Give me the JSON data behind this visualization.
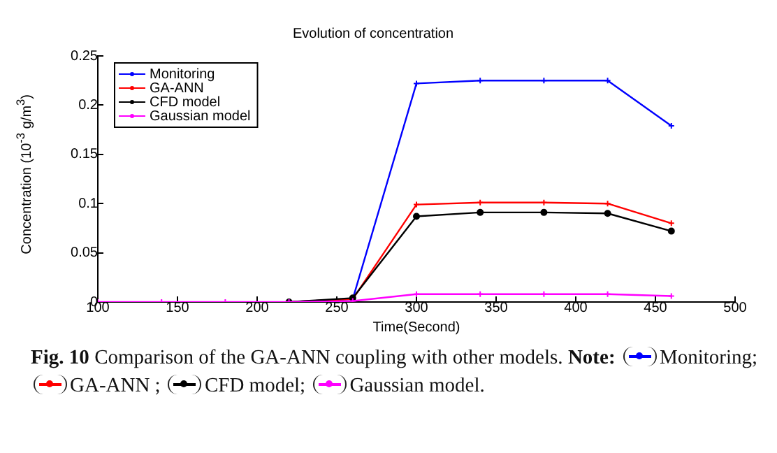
{
  "chart_data": {
    "type": "line",
    "title": "Evolution of concentration",
    "xlabel": "Time(Second)",
    "ylabel": "Concentration (10$^{-3}$ g/m$^{3}$)",
    "x": [
      100,
      140,
      180,
      220,
      260,
      300,
      340,
      380,
      420,
      460
    ],
    "series": [
      {
        "name": "Monitoring",
        "color": "#0000ff",
        "marker": "cross",
        "values": [
          null,
          null,
          null,
          0,
          0.003,
          0.222,
          0.225,
          0.225,
          0.225,
          0.179
        ]
      },
      {
        "name": "GA-ANN",
        "color": "#ff0000",
        "marker": "cross",
        "values": [
          null,
          null,
          null,
          0,
          0.003,
          0.099,
          0.101,
          0.101,
          0.1,
          0.08
        ]
      },
      {
        "name": "CFD model",
        "color": "#000000",
        "marker": "circle",
        "values": [
          null,
          null,
          null,
          0,
          0.004,
          0.087,
          0.091,
          0.091,
          0.09,
          0.072
        ]
      },
      {
        "name": "Gaussian model",
        "color": "#ff00ff",
        "marker": "cross",
        "values": [
          0,
          0,
          0,
          0,
          0.001,
          0.008,
          0.008,
          0.008,
          0.008,
          0.006
        ]
      }
    ],
    "xlim": [
      100,
      500
    ],
    "xticks": [
      100,
      150,
      200,
      250,
      300,
      350,
      400,
      450,
      500
    ],
    "ylim": [
      0,
      0.25
    ],
    "yticks": [
      0,
      0.05,
      0.1,
      0.15,
      0.2,
      0.25
    ],
    "grid": false,
    "legend": "top left",
    "line_style": "solid",
    "annotations": [
      "Fig. 10",
      "Comparison of the GA-ANN coupling with other models.",
      "Note:",
      "Monitoring;",
      "GA-ANN ;",
      "CFD model;",
      "Gaussian model."
    ]
  }
}
